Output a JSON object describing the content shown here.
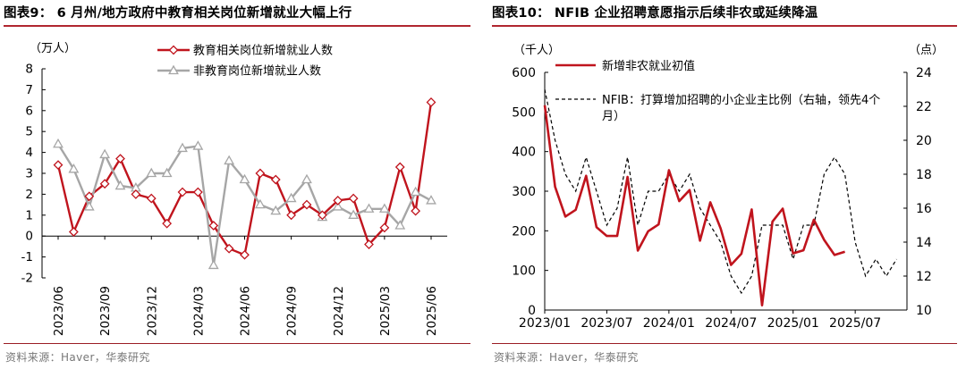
{
  "left": {
    "title": "图表9：  6 月州/地方政府中教育相关岗位新增就业大幅上行",
    "source": "资料来源：Haver，华泰研究"
  },
  "right": {
    "title": "图表10：  NFIB 企业招聘意愿指示后续非农或延续降温",
    "source": "资料来源：Haver，华泰研究"
  },
  "chart_data": [
    {
      "type": "line",
      "title": "",
      "ylabel": "（万人）",
      "ylim": [
        -2,
        8
      ],
      "yticks": [
        -2,
        -1,
        0,
        1,
        2,
        3,
        4,
        5,
        6,
        7,
        8
      ],
      "x_tick_labels": [
        "2023/06",
        "2023/09",
        "2023/12",
        "2024/03",
        "2024/06",
        "2024/09",
        "2024/12",
        "2025/03",
        "2025/06"
      ],
      "categories": [
        "2023/06",
        "2023/07",
        "2023/08",
        "2023/09",
        "2023/10",
        "2023/11",
        "2023/12",
        "2024/01",
        "2024/02",
        "2024/03",
        "2024/04",
        "2024/05",
        "2024/06",
        "2024/07",
        "2024/08",
        "2024/09",
        "2024/10",
        "2024/11",
        "2024/12",
        "2025/01",
        "2025/02",
        "2025/03",
        "2025/04",
        "2025/05",
        "2025/06"
      ],
      "legend_position": "top-right",
      "series": [
        {
          "name": "教育相关岗位新增就业人数",
          "color": "#c0141d",
          "marker": "diamond",
          "values": [
            3.4,
            0.2,
            1.9,
            2.5,
            3.7,
            2.0,
            1.8,
            0.6,
            2.1,
            2.1,
            0.5,
            -0.6,
            -0.9,
            3.0,
            2.7,
            1.0,
            1.5,
            1.0,
            1.7,
            1.8,
            -0.4,
            0.4,
            3.3,
            1.2,
            6.4
          ]
        },
        {
          "name": "非教育岗位新增就业人数",
          "color": "#a6a6a6",
          "marker": "triangle",
          "values": [
            4.4,
            3.2,
            1.4,
            3.9,
            2.4,
            2.3,
            3.0,
            3.0,
            4.2,
            4.3,
            -1.4,
            3.6,
            2.7,
            1.5,
            1.2,
            1.8,
            2.7,
            0.9,
            1.4,
            1.0,
            1.3,
            1.3,
            0.5,
            2.1,
            1.7
          ]
        }
      ]
    },
    {
      "type": "line",
      "title": "",
      "ylabel_left": "（千人）",
      "ylabel_right": "（点）",
      "ylim_left": [
        0,
        600
      ],
      "yticks_left": [
        0,
        100,
        200,
        300,
        400,
        500,
        600
      ],
      "ylim_right": [
        10,
        24
      ],
      "yticks_right": [
        10,
        12,
        14,
        16,
        18,
        20,
        22,
        24
      ],
      "x_tick_labels": [
        "2023/01",
        "2023/07",
        "2024/01",
        "2024/07",
        "2025/01",
        "2025/07"
      ],
      "legend_position": "top-left",
      "series": [
        {
          "name": "新增非农就业初值",
          "color": "#c0141d",
          "axis": "left",
          "start": "2023/01",
          "values": [
            517,
            311,
            236,
            253,
            339,
            209,
            187,
            187,
            336,
            150,
            199,
            216,
            353,
            275,
            303,
            175,
            272,
            206,
            114,
            142,
            254,
            12,
            223,
            256,
            143,
            151,
            228,
            177,
            139,
            147
          ]
        },
        {
          "name": "NFIB：打算增加招聘的小企业主比例（右轴，领先4个月）",
          "color": "#000000",
          "dash": true,
          "axis": "right",
          "start": "2023/01",
          "values": [
            23,
            20,
            18,
            17,
            19,
            17,
            15,
            16,
            19,
            15,
            17,
            17,
            18,
            17,
            18,
            16,
            15,
            14,
            12,
            11,
            12,
            15,
            15,
            15,
            13,
            15,
            15,
            18,
            19,
            18,
            14,
            12,
            13,
            12,
            13
          ]
        }
      ]
    }
  ]
}
